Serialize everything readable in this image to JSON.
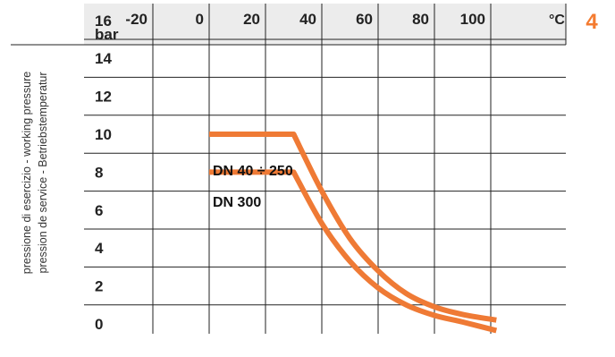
{
  "figure_number": "4",
  "chart_data": {
    "type": "line",
    "x_unit": "°C",
    "y_unit": "bar",
    "x_ticks": [
      -20,
      0,
      20,
      40,
      60,
      80,
      100
    ],
    "y_ticks": [
      16,
      14,
      12,
      10,
      8,
      6,
      4,
      2,
      0
    ],
    "xlim": [
      -20,
      100
    ],
    "ylim": [
      0,
      18
    ],
    "ylabel_lines": [
      "pressione di esercizio - working pressure",
      "pression de service - Betriebstemperatur"
    ],
    "grid": true,
    "colors": {
      "series": "#ef7a35",
      "badge": "#f47b30",
      "grid": "#222222",
      "header_bg": "#ececec"
    },
    "series": [
      {
        "name": "DN 40 ÷ 250",
        "points": [
          [
            0,
            10
          ],
          [
            30,
            10
          ],
          [
            40,
            7.0
          ],
          [
            50,
            4.5
          ],
          [
            60,
            2.8
          ],
          [
            70,
            1.6
          ],
          [
            80,
            0.9
          ],
          [
            90,
            0.5
          ],
          [
            102,
            0.2
          ]
        ]
      },
      {
        "name": "DN 300",
        "points": [
          [
            0,
            8
          ],
          [
            30,
            8
          ],
          [
            40,
            5.3
          ],
          [
            50,
            3.3
          ],
          [
            60,
            1.9
          ],
          [
            70,
            1.0
          ],
          [
            80,
            0.45
          ],
          [
            90,
            0.1
          ],
          [
            102,
            -0.35
          ]
        ]
      }
    ]
  }
}
